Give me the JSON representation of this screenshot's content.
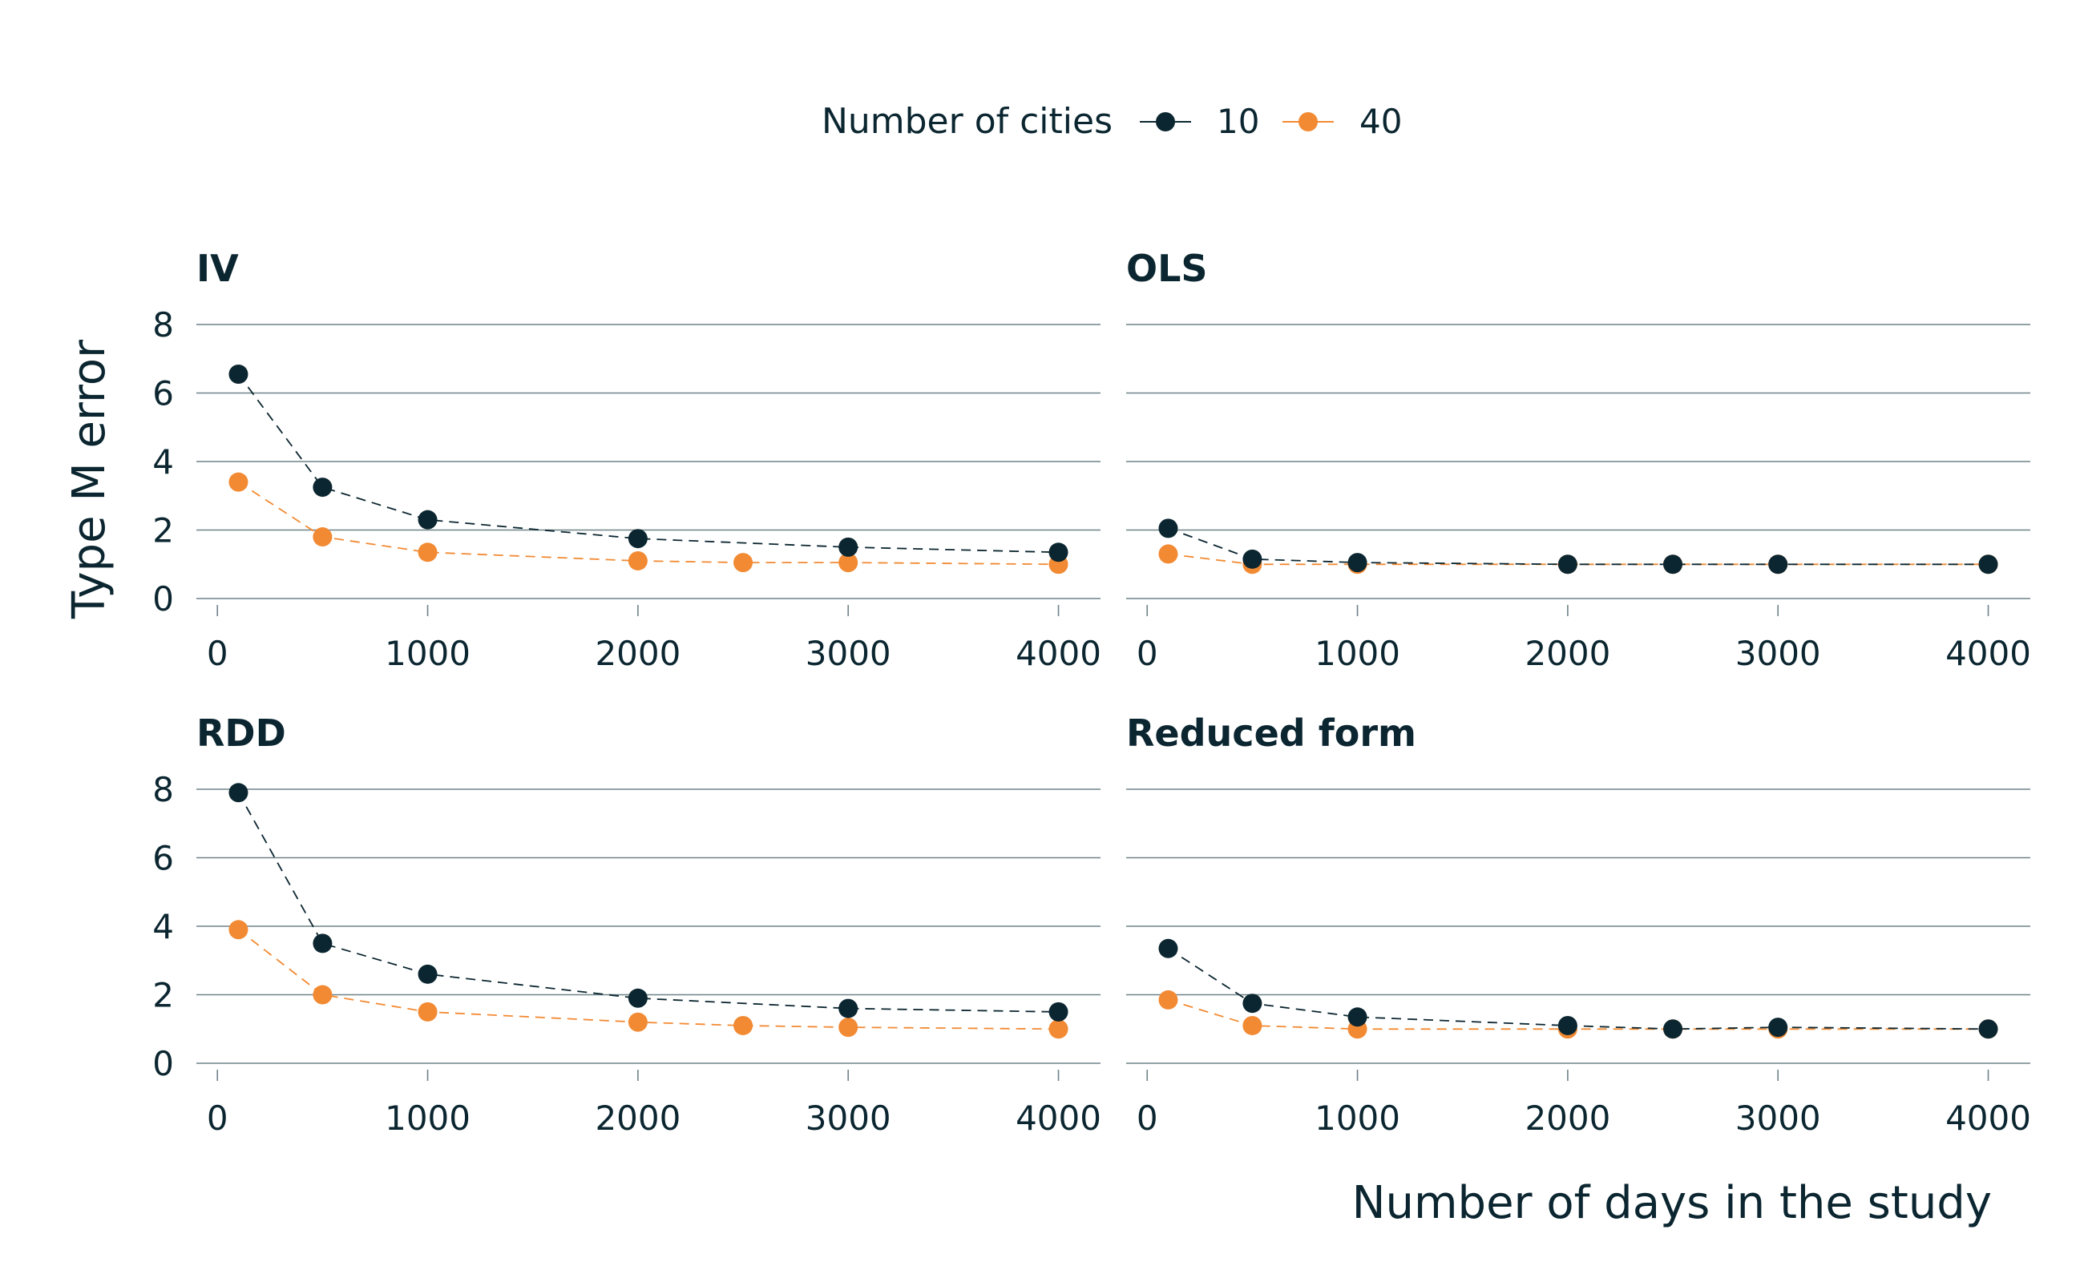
{
  "legend": {
    "title": "Number of cities",
    "entries": [
      {
        "label": "10",
        "color": "#0b2630"
      },
      {
        "label": "40",
        "color": "#f28a33"
      }
    ]
  },
  "axes": {
    "ylabel": "Type M error",
    "xlabel": "Number of days in the study",
    "xticks": [
      "0",
      "1000",
      "2000",
      "3000",
      "4000"
    ],
    "yticks": [
      "0",
      "2",
      "4",
      "6",
      "8"
    ],
    "xlim": [
      -100,
      4200
    ],
    "ylim": [
      0,
      8
    ]
  },
  "chart_data": [
    {
      "type": "line",
      "title": "IV",
      "x": [
        100,
        500,
        1000,
        2000,
        2500,
        3000,
        4000
      ],
      "series": [
        {
          "name": "10",
          "color": "#0b2630",
          "values": [
            6.55,
            3.25,
            2.3,
            1.75,
            null,
            1.5,
            1.35
          ]
        },
        {
          "name": "40",
          "color": "#f28a33",
          "values": [
            3.4,
            1.8,
            1.35,
            1.1,
            1.05,
            1.05,
            1.0
          ]
        }
      ]
    },
    {
      "type": "line",
      "title": "OLS",
      "x": [
        100,
        500,
        1000,
        2000,
        2500,
        3000,
        4000
      ],
      "series": [
        {
          "name": "10",
          "color": "#0b2630",
          "values": [
            2.05,
            1.15,
            1.05,
            1.0,
            1.0,
            1.0,
            1.0
          ]
        },
        {
          "name": "40",
          "color": "#f28a33",
          "values": [
            1.3,
            1.0,
            1.0,
            1.0,
            1.0,
            1.0,
            1.0
          ]
        }
      ]
    },
    {
      "type": "line",
      "title": "RDD",
      "x": [
        100,
        500,
        1000,
        2000,
        2500,
        3000,
        4000
      ],
      "series": [
        {
          "name": "10",
          "color": "#0b2630",
          "values": [
            7.9,
            3.5,
            2.6,
            1.9,
            null,
            1.6,
            1.5
          ]
        },
        {
          "name": "40",
          "color": "#f28a33",
          "values": [
            3.9,
            2.0,
            1.5,
            1.2,
            1.1,
            1.05,
            1.0
          ]
        }
      ]
    },
    {
      "type": "line",
      "title": "Reduced form",
      "x": [
        100,
        500,
        1000,
        2000,
        2500,
        3000,
        4000
      ],
      "series": [
        {
          "name": "10",
          "color": "#0b2630",
          "values": [
            3.35,
            1.75,
            1.35,
            1.1,
            1.0,
            1.05,
            1.0
          ]
        },
        {
          "name": "40",
          "color": "#f28a33",
          "values": [
            1.85,
            1.1,
            1.0,
            1.0,
            1.0,
            1.0,
            1.0
          ]
        }
      ]
    }
  ]
}
